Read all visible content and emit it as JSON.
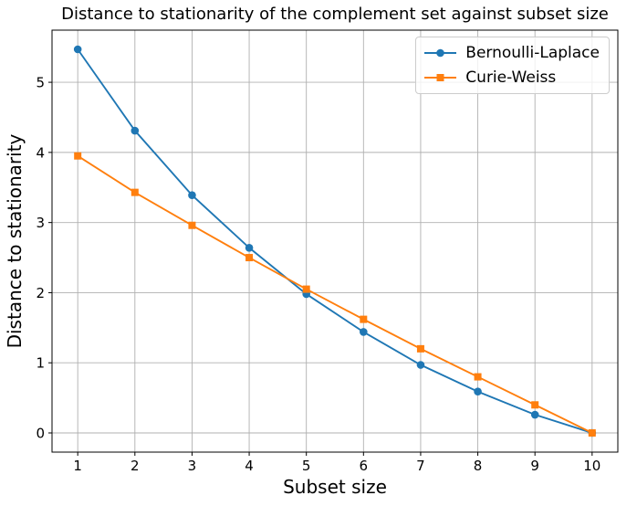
{
  "chart_data": {
    "type": "line",
    "title": "Distance to stationarity of the complement set against subset size",
    "xlabel": "Subset size",
    "ylabel": "Distance to stationarity",
    "x": [
      1,
      2,
      3,
      4,
      5,
      6,
      7,
      8,
      9,
      10
    ],
    "series": [
      {
        "name": "Bernoulli-Laplace",
        "color": "#1f77b4",
        "marker": "circle",
        "values": [
          5.47,
          4.31,
          3.39,
          2.64,
          1.98,
          1.44,
          0.97,
          0.59,
          0.26,
          0.0
        ]
      },
      {
        "name": "Curie-Weiss",
        "color": "#ff7f0e",
        "marker": "square",
        "values": [
          3.95,
          3.43,
          2.96,
          2.5,
          2.05,
          1.62,
          1.2,
          0.8,
          0.4,
          0.0
        ]
      }
    ],
    "xticks": [
      1,
      2,
      3,
      4,
      5,
      6,
      7,
      8,
      9,
      10
    ],
    "yticks": [
      0,
      1,
      2,
      3,
      4,
      5
    ],
    "xlim": [
      0.55,
      10.45
    ],
    "ylim": [
      -0.2735,
      5.7435
    ],
    "grid": true,
    "legend_position": "upper right",
    "grid_color": "#b0b0b0",
    "spine_color": "#000000",
    "background_color": "#ffffff"
  }
}
